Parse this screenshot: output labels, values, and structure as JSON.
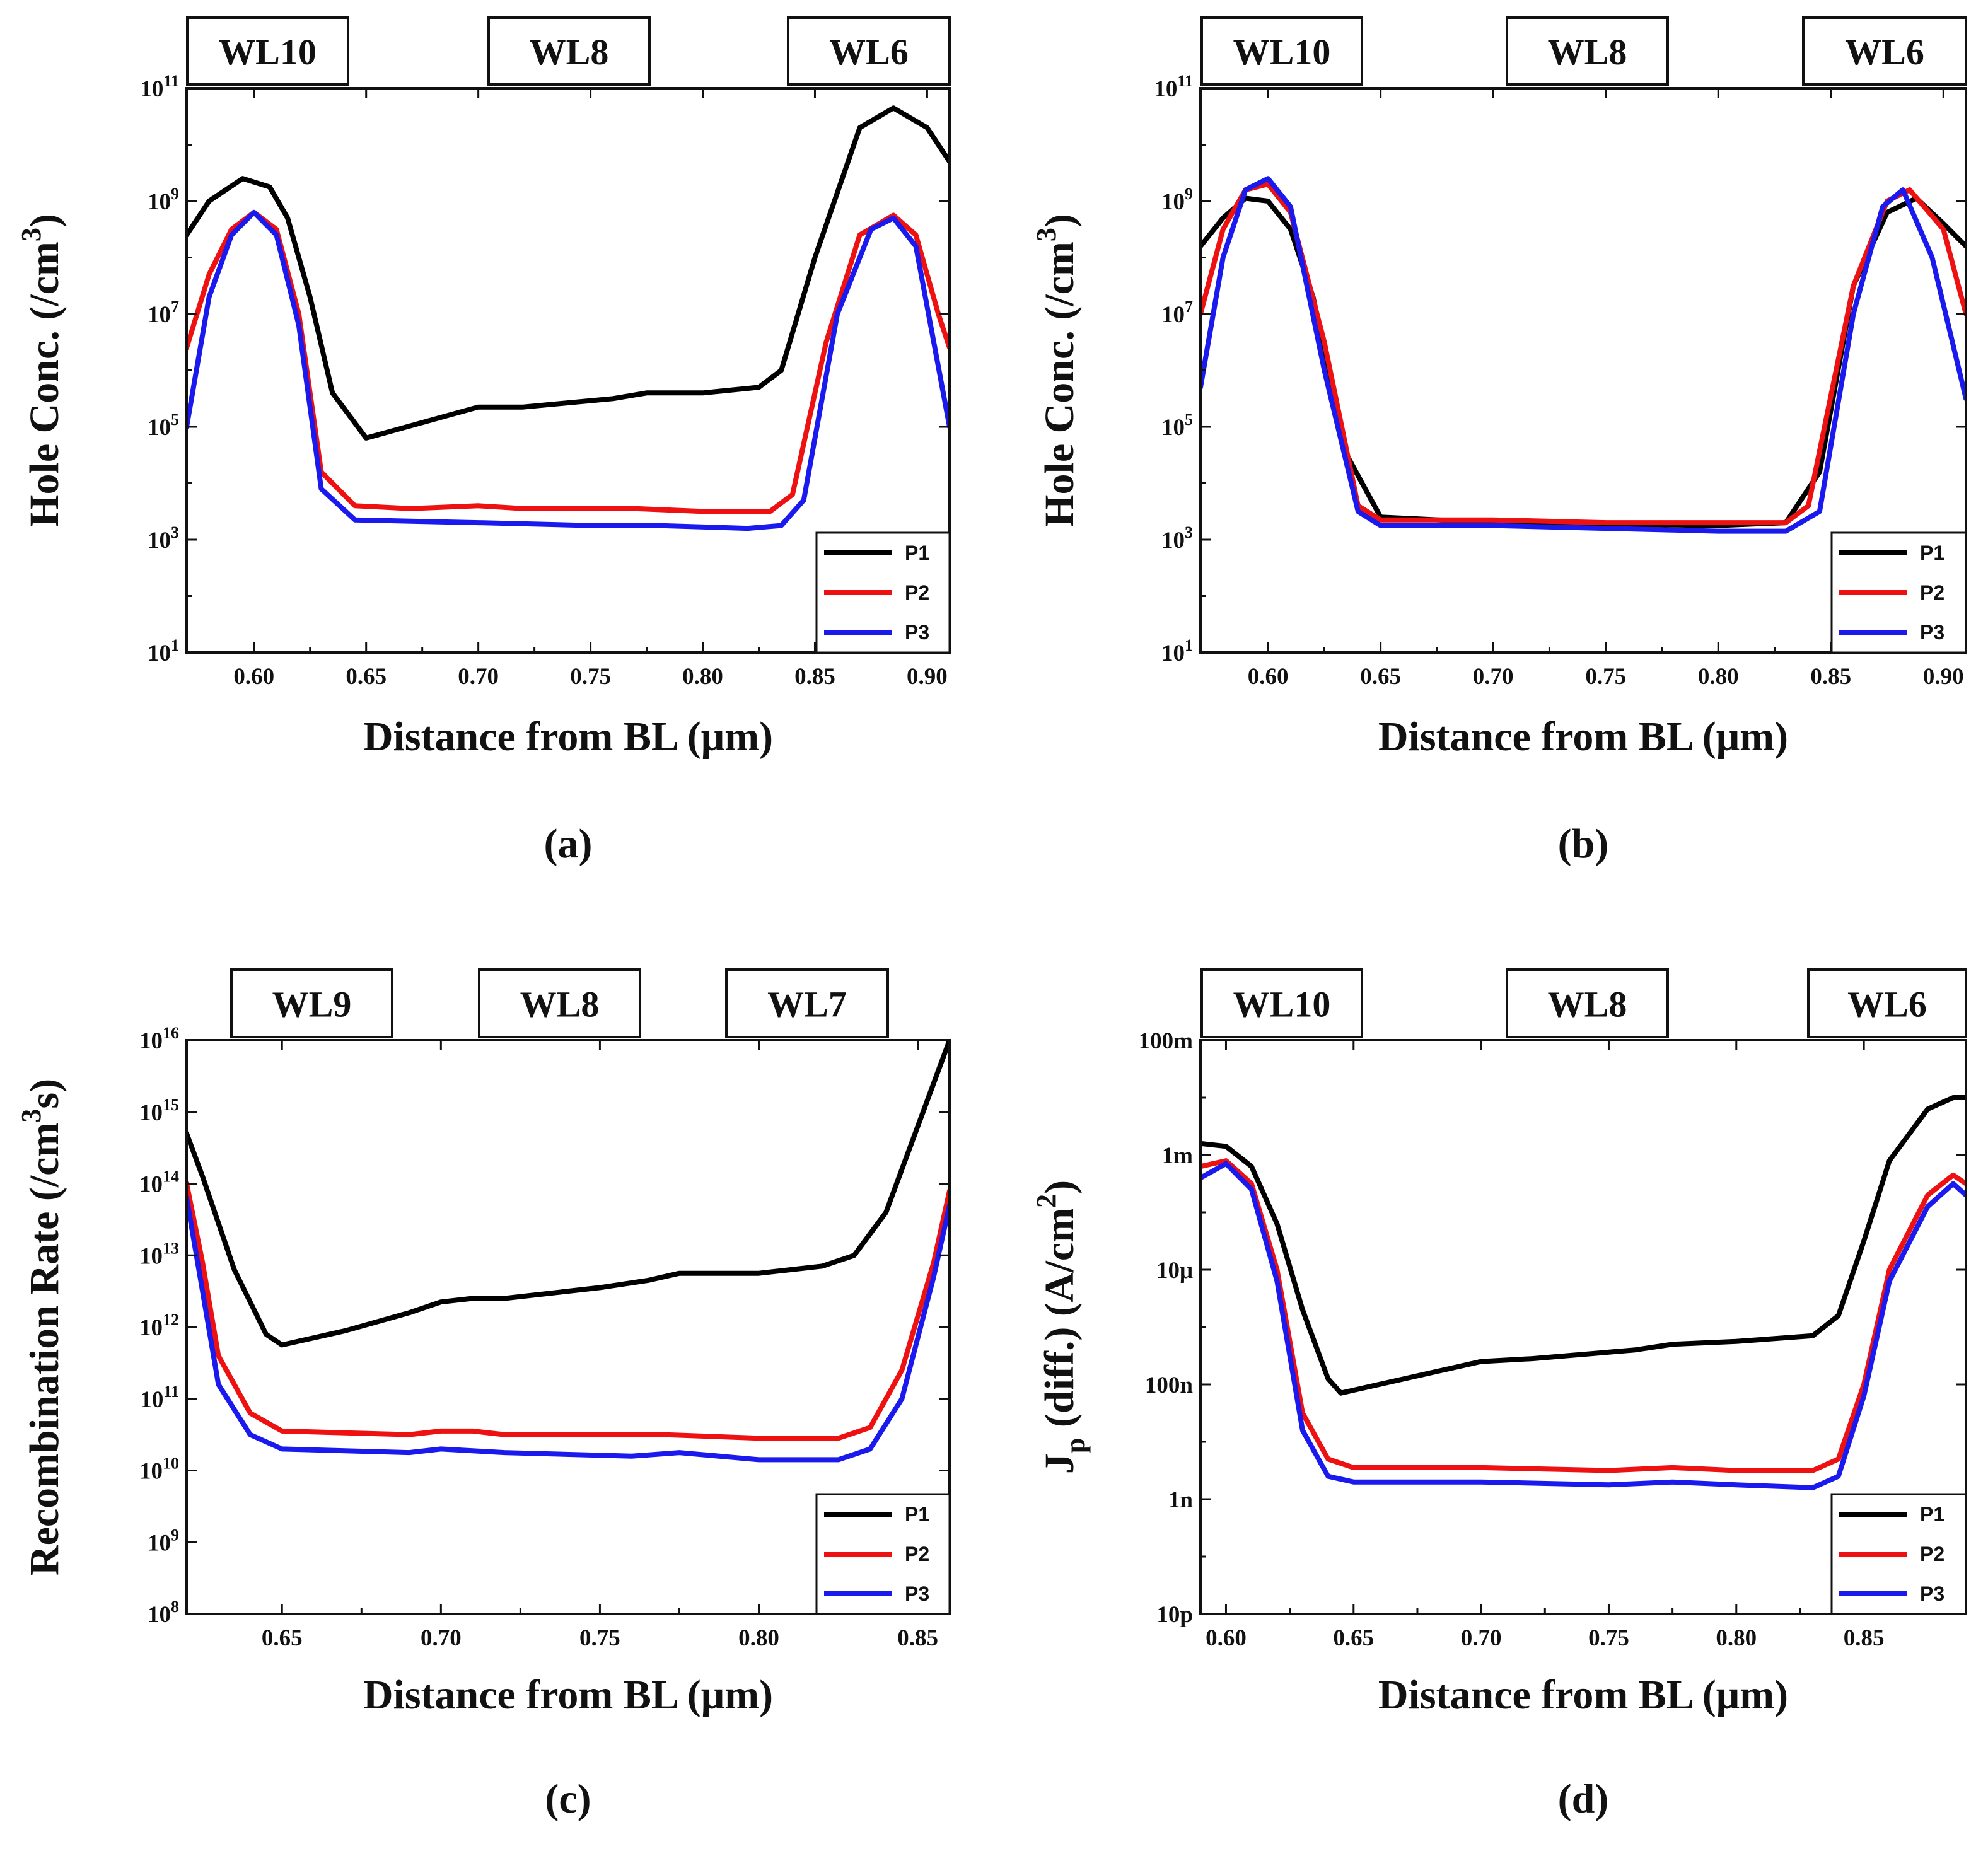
{
  "colors": {
    "P1": "#000000",
    "P2": "#ee1111",
    "P3": "#1a1aee"
  },
  "chart_data": [
    {
      "type": "line",
      "panel": "(a)",
      "title": "",
      "xlabel": "Distance from BL (μm)",
      "ylabel": "Hole Conc. (/cm",
      "ylabel_sup": "3",
      "ylabel_suffix": ")",
      "yscale": "log",
      "xlim": [
        0.57,
        0.91
      ],
      "ylim_exp": [
        1,
        11
      ],
      "x_ticks": [
        0.6,
        0.65,
        0.7,
        0.75,
        0.8,
        0.85,
        0.9
      ],
      "x_tick_labels": [
        "0.60",
        "0.65",
        "0.70",
        "0.75",
        "0.80",
        "0.85",
        "0.90"
      ],
      "y_ticks_exp": [
        1,
        3,
        5,
        7,
        9,
        11
      ],
      "y_tick_base": "10",
      "wordlines": [
        "WL10",
        "WL8",
        "WL6"
      ],
      "legend": [
        "P1",
        "P2",
        "P3"
      ],
      "series": [
        {
          "name": "P1",
          "points": [
            [
              0.57,
              8.4
            ],
            [
              0.58,
              9.0
            ],
            [
              0.595,
              9.4
            ],
            [
              0.607,
              9.25
            ],
            [
              0.615,
              8.7
            ],
            [
              0.625,
              7.3
            ],
            [
              0.635,
              5.6
            ],
            [
              0.65,
              4.8
            ],
            [
              0.7,
              5.35
            ],
            [
              0.72,
              5.35
            ],
            [
              0.76,
              5.5
            ],
            [
              0.775,
              5.6
            ],
            [
              0.8,
              5.6
            ],
            [
              0.825,
              5.7
            ],
            [
              0.835,
              6.0
            ],
            [
              0.85,
              8.0
            ],
            [
              0.87,
              10.3
            ],
            [
              0.885,
              10.65
            ],
            [
              0.9,
              10.3
            ],
            [
              0.91,
              9.7
            ]
          ]
        },
        {
          "name": "P2",
          "points": [
            [
              0.57,
              6.4
            ],
            [
              0.58,
              7.7
            ],
            [
              0.59,
              8.5
            ],
            [
              0.6,
              8.8
            ],
            [
              0.61,
              8.5
            ],
            [
              0.62,
              7.0
            ],
            [
              0.63,
              4.2
            ],
            [
              0.645,
              3.6
            ],
            [
              0.67,
              3.55
            ],
            [
              0.7,
              3.6
            ],
            [
              0.72,
              3.55
            ],
            [
              0.77,
              3.55
            ],
            [
              0.8,
              3.5
            ],
            [
              0.83,
              3.5
            ],
            [
              0.84,
              3.8
            ],
            [
              0.855,
              6.5
            ],
            [
              0.87,
              8.4
            ],
            [
              0.885,
              8.75
            ],
            [
              0.895,
              8.4
            ],
            [
              0.905,
              7.0
            ],
            [
              0.91,
              6.4
            ]
          ]
        },
        {
          "name": "P3",
          "points": [
            [
              0.57,
              5.0
            ],
            [
              0.58,
              7.3
            ],
            [
              0.59,
              8.4
            ],
            [
              0.6,
              8.8
            ],
            [
              0.61,
              8.4
            ],
            [
              0.62,
              6.8
            ],
            [
              0.63,
              3.9
            ],
            [
              0.645,
              3.35
            ],
            [
              0.7,
              3.3
            ],
            [
              0.75,
              3.25
            ],
            [
              0.78,
              3.25
            ],
            [
              0.82,
              3.2
            ],
            [
              0.835,
              3.25
            ],
            [
              0.845,
              3.7
            ],
            [
              0.86,
              7.0
            ],
            [
              0.875,
              8.5
            ],
            [
              0.885,
              8.7
            ],
            [
              0.895,
              8.2
            ],
            [
              0.91,
              5.0
            ]
          ]
        }
      ]
    },
    {
      "type": "line",
      "panel": "(b)",
      "title": "",
      "xlabel": "Distance from BL (μm)",
      "ylabel": "Hole Conc. (/cm",
      "ylabel_sup": "3",
      "ylabel_suffix": ")",
      "yscale": "log",
      "xlim": [
        0.57,
        0.91
      ],
      "ylim_exp": [
        1,
        11
      ],
      "x_ticks": [
        0.6,
        0.65,
        0.7,
        0.75,
        0.8,
        0.85,
        0.9
      ],
      "x_tick_labels": [
        "0.60",
        "0.65",
        "0.70",
        "0.75",
        "0.80",
        "0.85",
        "0.90"
      ],
      "y_ticks_exp": [
        1,
        3,
        5,
        7,
        9,
        11
      ],
      "y_tick_base": "10",
      "wordlines": [
        "WL10",
        "WL8",
        "WL6"
      ],
      "legend": [
        "P1",
        "P2",
        "P3"
      ],
      "series": [
        {
          "name": "P1",
          "points": [
            [
              0.57,
              8.2
            ],
            [
              0.58,
              8.7
            ],
            [
              0.59,
              9.05
            ],
            [
              0.6,
              9.0
            ],
            [
              0.61,
              8.5
            ],
            [
              0.62,
              7.3
            ],
            [
              0.635,
              4.5
            ],
            [
              0.65,
              3.4
            ],
            [
              0.7,
              3.3
            ],
            [
              0.8,
              3.25
            ],
            [
              0.83,
              3.3
            ],
            [
              0.845,
              4.2
            ],
            [
              0.86,
              7.5
            ],
            [
              0.875,
              8.8
            ],
            [
              0.888,
              9.05
            ],
            [
              0.9,
              8.6
            ],
            [
              0.91,
              8.2
            ]
          ]
        },
        {
          "name": "P2",
          "points": [
            [
              0.57,
              7.0
            ],
            [
              0.58,
              8.5
            ],
            [
              0.59,
              9.2
            ],
            [
              0.6,
              9.3
            ],
            [
              0.61,
              8.8
            ],
            [
              0.625,
              6.5
            ],
            [
              0.64,
              3.6
            ],
            [
              0.65,
              3.35
            ],
            [
              0.7,
              3.35
            ],
            [
              0.75,
              3.3
            ],
            [
              0.8,
              3.3
            ],
            [
              0.83,
              3.3
            ],
            [
              0.84,
              3.6
            ],
            [
              0.86,
              7.5
            ],
            [
              0.875,
              9.0
            ],
            [
              0.885,
              9.2
            ],
            [
              0.9,
              8.5
            ],
            [
              0.91,
              7.0
            ]
          ]
        },
        {
          "name": "P3",
          "points": [
            [
              0.57,
              5.7
            ],
            [
              0.58,
              8.0
            ],
            [
              0.59,
              9.2
            ],
            [
              0.6,
              9.4
            ],
            [
              0.61,
              8.9
            ],
            [
              0.625,
              6.0
            ],
            [
              0.64,
              3.5
            ],
            [
              0.65,
              3.25
            ],
            [
              0.7,
              3.25
            ],
            [
              0.75,
              3.2
            ],
            [
              0.8,
              3.15
            ],
            [
              0.83,
              3.15
            ],
            [
              0.845,
              3.5
            ],
            [
              0.86,
              7.0
            ],
            [
              0.873,
              8.9
            ],
            [
              0.882,
              9.2
            ],
            [
              0.895,
              8.0
            ],
            [
              0.91,
              5.5
            ]
          ]
        }
      ]
    },
    {
      "type": "line",
      "panel": "(c)",
      "title": "",
      "xlabel": "Distance from BL (μm)",
      "ylabel": "Recombination Rate (/cm",
      "ylabel_sup": "3",
      "ylabel_suffix": "s)",
      "yscale": "log",
      "xlim": [
        0.62,
        0.86
      ],
      "ylim_exp": [
        8,
        16
      ],
      "x_ticks": [
        0.65,
        0.7,
        0.75,
        0.8,
        0.85
      ],
      "x_tick_labels": [
        "0.65",
        "0.70",
        "0.75",
        "0.80",
        "0.85"
      ],
      "y_ticks_exp": [
        8,
        9,
        10,
        11,
        12,
        13,
        14,
        15,
        16
      ],
      "y_tick_base": "10",
      "wordlines": [
        "WL9",
        "WL8",
        "WL7"
      ],
      "legend": [
        "P1",
        "P2",
        "P3"
      ],
      "series": [
        {
          "name": "P1",
          "points": [
            [
              0.62,
              14.7
            ],
            [
              0.625,
              14.1
            ],
            [
              0.635,
              12.8
            ],
            [
              0.645,
              11.9
            ],
            [
              0.65,
              11.75
            ],
            [
              0.67,
              11.95
            ],
            [
              0.69,
              12.2
            ],
            [
              0.7,
              12.35
            ],
            [
              0.71,
              12.4
            ],
            [
              0.72,
              12.4
            ],
            [
              0.75,
              12.55
            ],
            [
              0.765,
              12.65
            ],
            [
              0.775,
              12.75
            ],
            [
              0.8,
              12.75
            ],
            [
              0.82,
              12.85
            ],
            [
              0.83,
              13.0
            ],
            [
              0.84,
              13.6
            ],
            [
              0.85,
              14.8
            ],
            [
              0.86,
              16.0
            ]
          ]
        },
        {
          "name": "P2",
          "points": [
            [
              0.62,
              14.0
            ],
            [
              0.625,
              12.9
            ],
            [
              0.63,
              11.6
            ],
            [
              0.64,
              10.8
            ],
            [
              0.65,
              10.55
            ],
            [
              0.69,
              10.5
            ],
            [
              0.7,
              10.55
            ],
            [
              0.71,
              10.55
            ],
            [
              0.72,
              10.5
            ],
            [
              0.77,
              10.5
            ],
            [
              0.8,
              10.45
            ],
            [
              0.825,
              10.45
            ],
            [
              0.835,
              10.6
            ],
            [
              0.845,
              11.4
            ],
            [
              0.855,
              12.9
            ],
            [
              0.86,
              13.9
            ]
          ]
        },
        {
          "name": "P3",
          "points": [
            [
              0.62,
              13.8
            ],
            [
              0.625,
              12.5
            ],
            [
              0.63,
              11.2
            ],
            [
              0.64,
              10.5
            ],
            [
              0.65,
              10.3
            ],
            [
              0.69,
              10.25
            ],
            [
              0.7,
              10.3
            ],
            [
              0.72,
              10.25
            ],
            [
              0.76,
              10.2
            ],
            [
              0.775,
              10.25
            ],
            [
              0.8,
              10.15
            ],
            [
              0.825,
              10.15
            ],
            [
              0.835,
              10.3
            ],
            [
              0.845,
              11.0
            ],
            [
              0.855,
              12.7
            ],
            [
              0.86,
              13.7
            ]
          ]
        }
      ]
    },
    {
      "type": "line",
      "panel": "(d)",
      "title": "",
      "xlabel": "Distance from BL (μm)",
      "ylabel": "J",
      "ylabel_sub": "p",
      "ylabel_mid": " (diff.) (A/cm",
      "ylabel_sup": "2",
      "ylabel_suffix": ")",
      "yscale": "log",
      "xlim": [
        0.59,
        0.89
      ],
      "ylim_exp": [
        -11,
        -1
      ],
      "x_ticks": [
        0.6,
        0.65,
        0.7,
        0.75,
        0.8,
        0.85
      ],
      "x_tick_labels": [
        "0.60",
        "0.65",
        "0.70",
        "0.75",
        "0.80",
        "0.85"
      ],
      "y_ticks_exp": [
        -11,
        -9,
        -7,
        -5,
        -3,
        -1
      ],
      "y_tick_labels": [
        "10p",
        "1n",
        "100n",
        "10μ",
        "1m",
        "100m"
      ],
      "wordlines": [
        "WL10",
        "WL8",
        "WL6"
      ],
      "legend": [
        "P1",
        "P2",
        "P3"
      ],
      "series": [
        {
          "name": "P1",
          "points": [
            [
              0.59,
              -2.8
            ],
            [
              0.6,
              -2.85
            ],
            [
              0.61,
              -3.2
            ],
            [
              0.62,
              -4.2
            ],
            [
              0.63,
              -5.7
            ],
            [
              0.64,
              -6.9
            ],
            [
              0.645,
              -7.15
            ],
            [
              0.65,
              -7.1
            ],
            [
              0.7,
              -6.6
            ],
            [
              0.72,
              -6.55
            ],
            [
              0.76,
              -6.4
            ],
            [
              0.775,
              -6.3
            ],
            [
              0.8,
              -6.25
            ],
            [
              0.83,
              -6.15
            ],
            [
              0.84,
              -5.8
            ],
            [
              0.85,
              -4.5
            ],
            [
              0.86,
              -3.1
            ],
            [
              0.875,
              -2.2
            ],
            [
              0.885,
              -2.0
            ],
            [
              0.89,
              -2.0
            ]
          ]
        },
        {
          "name": "P2",
          "points": [
            [
              0.59,
              -3.2
            ],
            [
              0.6,
              -3.1
            ],
            [
              0.61,
              -3.5
            ],
            [
              0.62,
              -5.0
            ],
            [
              0.63,
              -7.5
            ],
            [
              0.64,
              -8.3
            ],
            [
              0.65,
              -8.45
            ],
            [
              0.7,
              -8.45
            ],
            [
              0.75,
              -8.5
            ],
            [
              0.775,
              -8.45
            ],
            [
              0.8,
              -8.5
            ],
            [
              0.83,
              -8.5
            ],
            [
              0.84,
              -8.3
            ],
            [
              0.85,
              -7.0
            ],
            [
              0.86,
              -5.0
            ],
            [
              0.875,
              -3.7
            ],
            [
              0.885,
              -3.35
            ],
            [
              0.89,
              -3.5
            ]
          ]
        },
        {
          "name": "P3",
          "points": [
            [
              0.59,
              -3.4
            ],
            [
              0.6,
              -3.15
            ],
            [
              0.61,
              -3.6
            ],
            [
              0.62,
              -5.2
            ],
            [
              0.63,
              -7.8
            ],
            [
              0.64,
              -8.6
            ],
            [
              0.65,
              -8.7
            ],
            [
              0.7,
              -8.7
            ],
            [
              0.75,
              -8.75
            ],
            [
              0.775,
              -8.7
            ],
            [
              0.8,
              -8.75
            ],
            [
              0.83,
              -8.8
            ],
            [
              0.84,
              -8.6
            ],
            [
              0.85,
              -7.2
            ],
            [
              0.86,
              -5.2
            ],
            [
              0.875,
              -3.9
            ],
            [
              0.885,
              -3.5
            ],
            [
              0.89,
              -3.7
            ]
          ]
        }
      ]
    }
  ]
}
